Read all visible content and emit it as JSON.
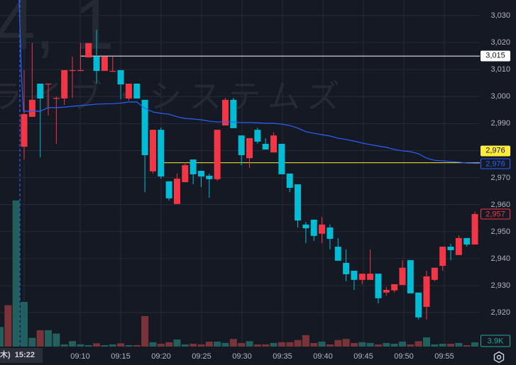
{
  "watermark": {
    "code": "4, 1",
    "name": "ライブ・システムズ"
  },
  "colors": {
    "background": "#151924",
    "grid": "#252a36",
    "up": "#f23645",
    "down": "#00bcd4",
    "vol_up": "#7a3339",
    "vol_down": "#22605e",
    "vwap": "#2962ff",
    "alert_line": "#ffeb3b",
    "white_line": "#ffffff"
  },
  "chart_data": {
    "type": "candlestick",
    "y_ticks": [
      "3,030",
      "3,020",
      "3,010",
      "3,000",
      "2,990",
      "2,970",
      "2,960",
      "2,950",
      "2,940",
      "2,930",
      "2,920"
    ],
    "y_tick_values": [
      3030,
      3020,
      3010,
      3000,
      2990,
      2970,
      2960,
      2950,
      2940,
      2930,
      2920
    ],
    "grid_values": [
      3030,
      3020,
      3010,
      3000,
      2990,
      2980,
      2970,
      2960,
      2950,
      2940,
      2930,
      2920
    ],
    "x_ticks": [
      "09:10",
      "09:15",
      "09:20",
      "09:25",
      "09:30",
      "09:35",
      "09:40",
      "09:45",
      "09:50",
      "09:55"
    ],
    "grid": true,
    "candles": [
      {
        "t": "09:03",
        "o": 2981.4,
        "h": 3009.8,
        "l": 2976.7,
        "c": 2993.5
      },
      {
        "t": "09:04",
        "o": 2992.5,
        "h": 3019.8,
        "l": 2992.5,
        "c": 2998.8
      },
      {
        "t": "09:05",
        "o": 3004.8,
        "h": 3004.8,
        "l": 2977.5,
        "c": 2999.3
      },
      {
        "t": "09:06",
        "o": 3004.5,
        "h": 3004.8,
        "l": 2993.0,
        "c": 3004.8
      },
      {
        "t": "09:07",
        "o": 2999.4,
        "h": 3000.0,
        "l": 2982.5,
        "c": 2999.5
      },
      {
        "t": "09:08",
        "o": 2999.3,
        "h": 3009.8,
        "l": 2996.9,
        "c": 3009.8
      },
      {
        "t": "09:09",
        "o": 3009.7,
        "h": 3014.8,
        "l": 2999.5,
        "c": 3009.8
      },
      {
        "t": "09:10",
        "o": 3009.7,
        "h": 3019.8,
        "l": 3009.7,
        "c": 3009.8
      },
      {
        "t": "09:11",
        "o": 3014.5,
        "h": 3019.8,
        "l": 3014.5,
        "c": 3019.8
      },
      {
        "t": "09:12",
        "o": 3014.8,
        "h": 3024.7,
        "l": 3004.8,
        "c": 3009.5
      },
      {
        "t": "09:13",
        "o": 3009.5,
        "h": 3014.8,
        "l": 3009.5,
        "c": 3014.8
      },
      {
        "t": "09:14",
        "o": 3009.4,
        "h": 3014.8,
        "l": 3009.4,
        "c": 3009.5
      },
      {
        "t": "09:15",
        "o": 3009.8,
        "h": 3009.8,
        "l": 2999.0,
        "c": 3004.5
      },
      {
        "t": "09:16",
        "o": 2999.3,
        "h": 3004.8,
        "l": 2998.5,
        "c": 3004.8
      },
      {
        "t": "09:17",
        "o": 3004.8,
        "h": 3004.8,
        "l": 2999.3,
        "c": 2999.3
      },
      {
        "t": "09:18",
        "o": 2998.8,
        "h": 2998.8,
        "l": 2964.6,
        "c": 2978.3
      },
      {
        "t": "09:19",
        "o": 2972.3,
        "h": 2987.7,
        "l": 2971.5,
        "c": 2987.7
      },
      {
        "t": "09:20",
        "o": 2987.7,
        "h": 2988.5,
        "l": 2969.6,
        "c": 2970.4
      },
      {
        "t": "09:21",
        "o": 2968.6,
        "h": 2968.6,
        "l": 2961.5,
        "c": 2962.3
      },
      {
        "t": "09:22",
        "o": 2960.2,
        "h": 2971.5,
        "l": 2960.2,
        "c": 2969.6
      },
      {
        "t": "09:23",
        "o": 2968.3,
        "h": 2975.7,
        "l": 2968.3,
        "c": 2974.6
      },
      {
        "t": "09:24",
        "o": 2976.7,
        "h": 2976.7,
        "l": 2967.5,
        "c": 2971.2
      },
      {
        "t": "09:25",
        "o": 2972.5,
        "h": 2972.5,
        "l": 2966.5,
        "c": 2970.4
      },
      {
        "t": "09:26",
        "o": 2970.7,
        "h": 2971.5,
        "l": 2962.5,
        "c": 2969.4
      },
      {
        "t": "09:27",
        "o": 2969.4,
        "h": 2987.7,
        "l": 2968.8,
        "c": 2987.7
      },
      {
        "t": "09:28",
        "o": 2989.3,
        "h": 2999.5,
        "l": 2989.3,
        "c": 2998.8
      },
      {
        "t": "09:29",
        "o": 2998.8,
        "h": 2999.5,
        "l": 2988.3,
        "c": 2988.3
      },
      {
        "t": "09:30",
        "o": 2985.6,
        "h": 2985.6,
        "l": 2974.6,
        "c": 2978.3
      },
      {
        "t": "09:31",
        "o": 2977.2,
        "h": 2984.6,
        "l": 2973.6,
        "c": 2984.6
      },
      {
        "t": "09:32",
        "o": 2987.7,
        "h": 2988.5,
        "l": 2982.5,
        "c": 2983.3
      },
      {
        "t": "09:33",
        "o": 2982.5,
        "h": 2984.6,
        "l": 2980.4,
        "c": 2980.4
      },
      {
        "t": "09:34",
        "o": 2979.3,
        "h": 2986.7,
        "l": 2979.3,
        "c": 2985.6
      },
      {
        "t": "09:35",
        "o": 2982.5,
        "h": 2982.5,
        "l": 2971.2,
        "c": 2971.2
      },
      {
        "t": "09:36",
        "o": 2971.5,
        "h": 2971.5,
        "l": 2964.6,
        "c": 2966.2
      },
      {
        "t": "09:37",
        "o": 2967.5,
        "h": 2967.5,
        "l": 2951.5,
        "c": 2954.1
      },
      {
        "t": "09:38",
        "o": 2952.6,
        "h": 2953.6,
        "l": 2945.7,
        "c": 2951.2
      },
      {
        "t": "09:39",
        "o": 2954.4,
        "h": 2954.4,
        "l": 2946.5,
        "c": 2948.4
      },
      {
        "t": "09:40",
        "o": 2949.2,
        "h": 2955.4,
        "l": 2945.7,
        "c": 2952.6
      },
      {
        "t": "09:41",
        "o": 2951.5,
        "h": 2952.6,
        "l": 2943.4,
        "c": 2947.3
      },
      {
        "t": "09:42",
        "o": 2944.4,
        "h": 2947.6,
        "l": 2939.2,
        "c": 2939.2
      },
      {
        "t": "09:43",
        "o": 2938.4,
        "h": 2943.4,
        "l": 2931.6,
        "c": 2934.2
      },
      {
        "t": "09:44",
        "o": 2935.5,
        "h": 2935.5,
        "l": 2928.4,
        "c": 2932.1
      },
      {
        "t": "09:45",
        "o": 2932.1,
        "h": 2934.4,
        "l": 2930.5,
        "c": 2934.4
      },
      {
        "t": "09:46",
        "o": 2932.1,
        "h": 2943.4,
        "l": 2932.1,
        "c": 2934.4
      },
      {
        "t": "09:47",
        "o": 2934.4,
        "h": 2934.4,
        "l": 2923.4,
        "c": 2925.3
      },
      {
        "t": "09:48",
        "o": 2927.4,
        "h": 2929.5,
        "l": 2926.3,
        "c": 2928.4
      },
      {
        "t": "09:49",
        "o": 2928.2,
        "h": 2930.5,
        "l": 2927.4,
        "c": 2930.5
      },
      {
        "t": "09:50",
        "o": 2930.2,
        "h": 2939.4,
        "l": 2930.2,
        "c": 2936.6
      },
      {
        "t": "09:51",
        "o": 2939.4,
        "h": 2939.4,
        "l": 2927.1,
        "c": 2927.1
      },
      {
        "t": "09:52",
        "o": 2927.4,
        "h": 2927.4,
        "l": 2917.4,
        "c": 2918.2
      },
      {
        "t": "09:53",
        "o": 2922.1,
        "h": 2935.5,
        "l": 2917.4,
        "c": 2933.4
      },
      {
        "t": "09:54",
        "o": 2932.1,
        "h": 2936.6,
        "l": 2931.6,
        "c": 2936.6
      },
      {
        "t": "09:55",
        "o": 2937.3,
        "h": 2944.4,
        "l": 2935.5,
        "c": 2944.4
      },
      {
        "t": "09:56",
        "o": 2944.4,
        "h": 2945.5,
        "l": 2939.4,
        "c": 2943.1
      },
      {
        "t": "09:57",
        "o": 2941.3,
        "h": 2948.6,
        "l": 2941.3,
        "c": 2947.6
      },
      {
        "t": "09:58",
        "o": 2947.6,
        "h": 2947.6,
        "l": 2944.4,
        "c": 2945.2
      },
      {
        "t": "09:59",
        "o": 2945.2,
        "h": 2957.5,
        "l": 2945.2,
        "c": 2956.5
      }
    ],
    "prev_session_volume": [
      {
        "v": 18,
        "d": "down"
      },
      {
        "v": 38,
        "d": "up"
      },
      {
        "v": 134,
        "d": "down"
      }
    ],
    "volume_unit": "K",
    "volume": [
      {
        "v": 41,
        "d": "down"
      },
      {
        "v": 8,
        "d": "down"
      },
      {
        "v": 15,
        "d": "up"
      },
      {
        "v": 15,
        "d": "down"
      },
      {
        "v": 12,
        "d": "down"
      },
      {
        "v": 2,
        "d": "down"
      },
      {
        "v": 5,
        "d": "down"
      },
      {
        "v": 2,
        "d": "down"
      },
      {
        "v": 1.3,
        "d": "down"
      },
      {
        "v": 3,
        "d": "up"
      },
      {
        "v": 1.3,
        "d": "down"
      },
      {
        "v": 2,
        "d": "down"
      },
      {
        "v": 3,
        "d": "up"
      },
      {
        "v": 1.3,
        "d": "down"
      },
      {
        "v": 1.3,
        "d": "up"
      },
      {
        "v": 28,
        "d": "up"
      },
      {
        "v": 4,
        "d": "down"
      },
      {
        "v": 2.6,
        "d": "up"
      },
      {
        "v": 4,
        "d": "up"
      },
      {
        "v": 6.5,
        "d": "down"
      },
      {
        "v": 2,
        "d": "down"
      },
      {
        "v": 2.6,
        "d": "up"
      },
      {
        "v": 2,
        "d": "up"
      },
      {
        "v": 4.5,
        "d": "up"
      },
      {
        "v": 4.5,
        "d": "down"
      },
      {
        "v": 3.3,
        "d": "down"
      },
      {
        "v": 7,
        "d": "up"
      },
      {
        "v": 3.3,
        "d": "up"
      },
      {
        "v": 5,
        "d": "down"
      },
      {
        "v": 2,
        "d": "up"
      },
      {
        "v": 2,
        "d": "up"
      },
      {
        "v": 3.3,
        "d": "down"
      },
      {
        "v": 4,
        "d": "up"
      },
      {
        "v": 4,
        "d": "up"
      },
      {
        "v": 6,
        "d": "up"
      },
      {
        "v": 10.5,
        "d": "up"
      },
      {
        "v": 3.3,
        "d": "up"
      },
      {
        "v": 4.5,
        "d": "down"
      },
      {
        "v": 2,
        "d": "up"
      },
      {
        "v": 6,
        "d": "up"
      },
      {
        "v": 7,
        "d": "up"
      },
      {
        "v": 3.3,
        "d": "up"
      },
      {
        "v": 4,
        "d": "down"
      },
      {
        "v": 3.3,
        "d": "down"
      },
      {
        "v": 2,
        "d": "up"
      },
      {
        "v": 3.3,
        "d": "down"
      },
      {
        "v": 2.6,
        "d": "down"
      },
      {
        "v": 4.5,
        "d": "down"
      },
      {
        "v": 2,
        "d": "up"
      },
      {
        "v": 5,
        "d": "up"
      },
      {
        "v": 8.5,
        "d": "down"
      },
      {
        "v": 2,
        "d": "down"
      },
      {
        "v": 2.6,
        "d": "down"
      },
      {
        "v": 2.6,
        "d": "up"
      },
      {
        "v": 3.3,
        "d": "down"
      },
      {
        "v": 1.3,
        "d": "up"
      },
      {
        "v": 3.9,
        "d": "down"
      }
    ],
    "vwap": [
      2994.6,
      2994.6,
      2994.6,
      2995.9,
      2995.9,
      2996.1,
      2996.4,
      2996.7,
      2996.9,
      2997.2,
      2997.3,
      2997.4,
      2997.6,
      2998.0,
      2998.0,
      2995.6,
      2994.3,
      2993.8,
      2993.5,
      2992.5,
      2991.9,
      2991.7,
      2991.4,
      2990.9,
      2990.6,
      2990.6,
      2990.6,
      2990.4,
      2990.4,
      2990.3,
      2990.1,
      2990.1,
      2989.8,
      2989.3,
      2988.3,
      2987.0,
      2986.4,
      2985.9,
      2985.4,
      2984.6,
      2984.1,
      2983.5,
      2982.8,
      2982.2,
      2981.7,
      2981.2,
      2980.4,
      2979.9,
      2979.6,
      2978.8,
      2977.2,
      2976.4,
      2976.2,
      2975.9,
      2975.7,
      2975.4,
      2975.3
    ],
    "horizontal_lines": [
      {
        "name": "white-level",
        "price": 3015,
        "label": "3,015"
      },
      {
        "name": "yellow-level",
        "price": 2975.5,
        "label": "2,976"
      }
    ],
    "tags": {
      "vwap": "2,976",
      "last_price": "2,957",
      "volume": "3.9K"
    }
  },
  "bottom": {
    "crosshair_date": "木)",
    "crosshair_time": "15:22"
  }
}
